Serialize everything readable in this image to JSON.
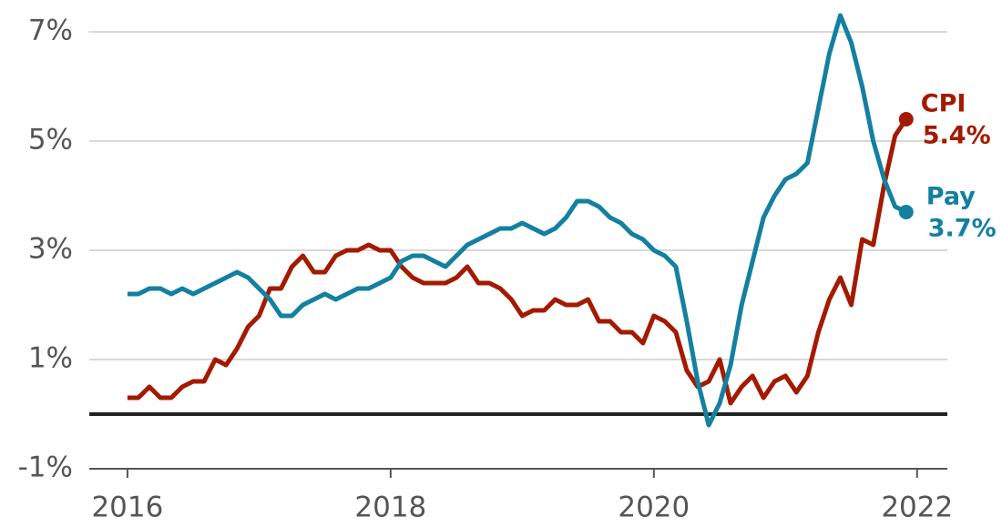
{
  "chart_data": {
    "type": "line",
    "x": [
      2016,
      2016.083,
      2016.167,
      2016.25,
      2016.333,
      2016.417,
      2016.5,
      2016.583,
      2016.667,
      2016.75,
      2016.833,
      2016.917,
      2017,
      2017.083,
      2017.167,
      2017.25,
      2017.333,
      2017.417,
      2017.5,
      2017.583,
      2017.667,
      2017.75,
      2017.833,
      2017.917,
      2018,
      2018.083,
      2018.167,
      2018.25,
      2018.333,
      2018.417,
      2018.5,
      2018.583,
      2018.667,
      2018.75,
      2018.833,
      2018.917,
      2019,
      2019.083,
      2019.167,
      2019.25,
      2019.333,
      2019.417,
      2019.5,
      2019.583,
      2019.667,
      2019.75,
      2019.833,
      2019.917,
      2020,
      2020.083,
      2020.167,
      2020.25,
      2020.333,
      2020.417,
      2020.5,
      2020.583,
      2020.667,
      2020.75,
      2020.833,
      2020.917,
      2021,
      2021.083,
      2021.167,
      2021.25,
      2021.333,
      2021.417,
      2021.5,
      2021.583,
      2021.667,
      2021.75,
      2021.833,
      2021.917
    ],
    "series": [
      {
        "name": "CPI",
        "color": "#a31a00",
        "end_label": "5.4%",
        "values": [
          0.3,
          0.3,
          0.5,
          0.3,
          0.3,
          0.5,
          0.6,
          0.6,
          1.0,
          0.9,
          1.2,
          1.6,
          1.8,
          2.3,
          2.3,
          2.7,
          2.9,
          2.6,
          2.6,
          2.9,
          3.0,
          3.0,
          3.1,
          3.0,
          3.0,
          2.7,
          2.5,
          2.4,
          2.4,
          2.4,
          2.5,
          2.7,
          2.4,
          2.4,
          2.3,
          2.1,
          1.8,
          1.9,
          1.9,
          2.1,
          2.0,
          2.0,
          2.1,
          1.7,
          1.7,
          1.5,
          1.5,
          1.3,
          1.8,
          1.7,
          1.5,
          0.8,
          0.5,
          0.6,
          1.0,
          0.2,
          0.5,
          0.7,
          0.3,
          0.6,
          0.7,
          0.4,
          0.7,
          1.5,
          2.1,
          2.5,
          2.0,
          3.2,
          3.1,
          4.2,
          5.1,
          5.4
        ]
      },
      {
        "name": "Pay",
        "color": "#1380a1",
        "end_label": "3.7%",
        "values": [
          2.2,
          2.2,
          2.3,
          2.3,
          2.2,
          2.3,
          2.2,
          2.3,
          2.4,
          2.5,
          2.6,
          2.5,
          2.3,
          2.1,
          1.8,
          1.8,
          2.0,
          2.1,
          2.2,
          2.1,
          2.2,
          2.3,
          2.3,
          2.4,
          2.5,
          2.8,
          2.9,
          2.9,
          2.8,
          2.7,
          2.9,
          3.1,
          3.2,
          3.3,
          3.4,
          3.4,
          3.5,
          3.4,
          3.3,
          3.4,
          3.6,
          3.9,
          3.9,
          3.8,
          3.6,
          3.5,
          3.3,
          3.2,
          3.0,
          2.9,
          2.7,
          1.7,
          0.6,
          -0.2,
          0.2,
          0.9,
          2.0,
          2.8,
          3.6,
          4.0,
          4.3,
          4.4,
          4.6,
          5.6,
          6.6,
          7.3,
          6.8,
          6.0,
          5.0,
          4.3,
          3.8,
          3.7
        ]
      }
    ],
    "xlim": [
      2015.71,
      2022.23
    ],
    "xticks": [
      2016,
      2018,
      2020,
      2022
    ],
    "ylim": [
      -1,
      7.4
    ],
    "yticks": [
      {
        "value": -1,
        "label": "-1%"
      },
      {
        "value": 1,
        "label": "1%"
      },
      {
        "value": 3,
        "label": "3%"
      },
      {
        "value": 5,
        "label": "5%"
      },
      {
        "value": 7,
        "label": "7%"
      }
    ],
    "grid": true
  }
}
